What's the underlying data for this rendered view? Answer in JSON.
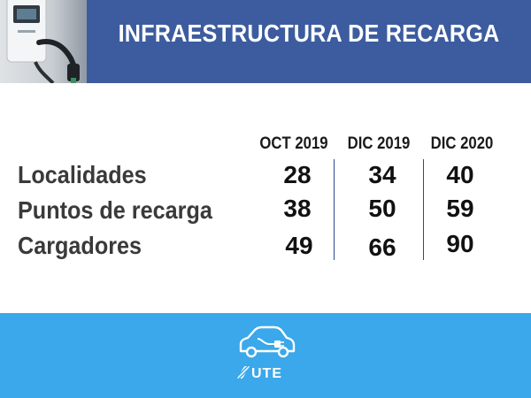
{
  "header": {
    "title": "INFRAESTRUCTURA DE RECARGA"
  },
  "table": {
    "columns": [
      "OCT 2019",
      "DIC 2019",
      "DIC 2020"
    ],
    "rows": [
      {
        "label": "Localidades",
        "values": [
          "28",
          "34",
          "40"
        ]
      },
      {
        "label": "Puntos de recarga",
        "values": [
          "38",
          "50",
          "59"
        ]
      },
      {
        "label": "Cargadores",
        "values": [
          "49",
          "66",
          "90"
        ]
      }
    ]
  },
  "footer": {
    "icon": "electric-car-icon",
    "logo_text": "UTE"
  },
  "colors": {
    "header_bg": "#3c5c9f",
    "footer_bg": "#3aa8ea",
    "divider": "#2b4a8f"
  }
}
